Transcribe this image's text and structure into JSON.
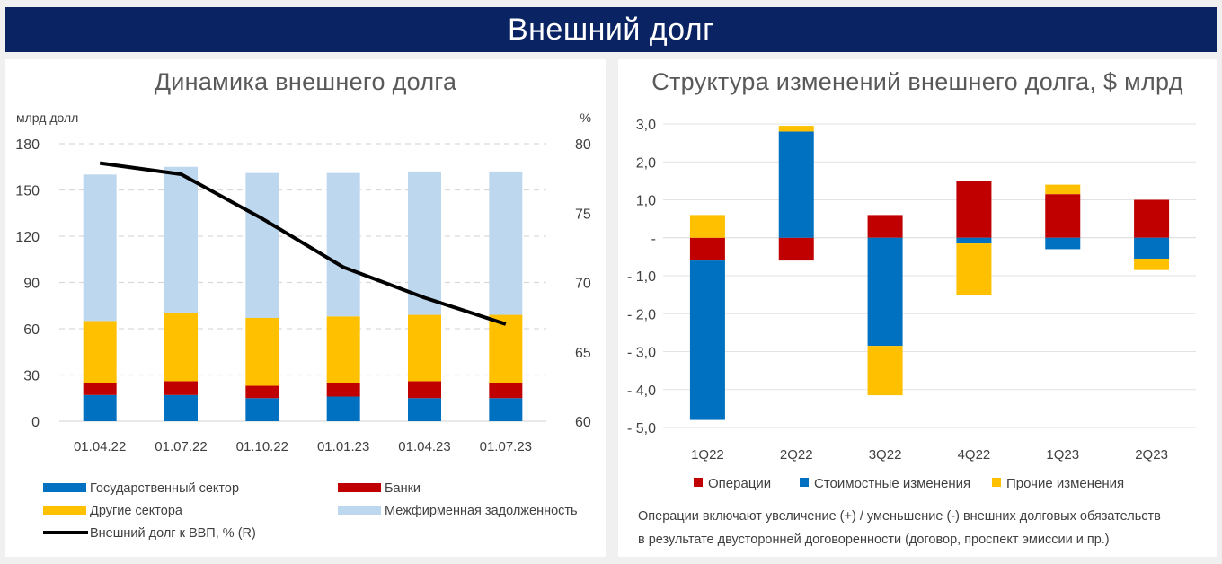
{
  "banner": {
    "title": "Внешний долг"
  },
  "left_chart": {
    "title": "Динамика внешнего долга",
    "ylabel_left": "млрд долл",
    "ylabel_right": "%"
  },
  "right_chart": {
    "title": "Структура изменений внешнего долга, $ млрд",
    "footnote_line1": "Операции включают увеличение (+) / уменьшение (-) внешних долговых обязательств",
    "footnote_line2": "в результате двусторонней договоренности (договор, проспект эмиссии и пр.)"
  },
  "colors": {
    "government": "#0070c0",
    "banks": "#c00000",
    "other_sectors": "#ffc000",
    "intercompany": "#bdd7ee",
    "line": "#000000",
    "operations": "#c00000",
    "valuation": "#0070c0",
    "other_changes": "#ffc000"
  },
  "chart_data": [
    {
      "type": "bar",
      "stacked": true,
      "title": "Динамика внешнего долга",
      "categories": [
        "01.04.22",
        "01.07.22",
        "01.10.22",
        "01.01.23",
        "01.04.23",
        "01.07.23"
      ],
      "ylabel": "млрд долл",
      "ylim": [
        0,
        180
      ],
      "yticks": [
        0,
        30,
        60,
        90,
        120,
        150,
        180
      ],
      "y2label": "%",
      "y2lim": [
        60,
        80
      ],
      "y2ticks": [
        60,
        65,
        70,
        75,
        80
      ],
      "grid": true,
      "legend_position": "bottom",
      "series": [
        {
          "name": "Государственный сектор",
          "color_key": "government",
          "values": [
            17,
            17,
            15,
            16,
            15,
            15
          ]
        },
        {
          "name": "Банки",
          "color_key": "banks",
          "values": [
            8,
            9,
            8,
            9,
            11,
            10
          ]
        },
        {
          "name": "Другие сектора",
          "color_key": "other_sectors",
          "values": [
            40,
            44,
            44,
            43,
            43,
            44
          ]
        },
        {
          "name": "Межфирменная задолженность",
          "color_key": "intercompany",
          "values": [
            95,
            95,
            94,
            93,
            93,
            93
          ]
        }
      ],
      "line_series": [
        {
          "name": "Внешний долг к ВВП, % (R)",
          "color_key": "line",
          "axis": "right",
          "values": [
            78.6,
            77.8,
            74.6,
            71.1,
            68.9,
            67.0
          ]
        }
      ],
      "legend_order": [
        "Государственный сектор",
        "Банки",
        "Другие сектора",
        "Межфирменная задолженность",
        "Внешний долг к ВВП, % (R)"
      ]
    },
    {
      "type": "bar",
      "stacked": true,
      "diverging": true,
      "title": "Структура изменений внешнего долга, $ млрд",
      "categories": [
        "1Q22",
        "2Q22",
        "3Q22",
        "4Q22",
        "1Q23",
        "2Q23"
      ],
      "ylim": [
        -5,
        3
      ],
      "yticks": [
        -5,
        -4,
        -3,
        -2,
        -1,
        0,
        1,
        2,
        3
      ],
      "ytick_labels": [
        "- 5,0",
        "- 4,0",
        "- 3,0",
        "- 2,0",
        "- 1,0",
        "-",
        "1,0",
        "2,0",
        "3,0"
      ],
      "grid": true,
      "legend_position": "bottom",
      "series": [
        {
          "name": "Операции",
          "color_key": "operations",
          "values": [
            -0.6,
            -0.6,
            0.6,
            1.5,
            1.15,
            1.0
          ]
        },
        {
          "name": "Стоимостные изменения",
          "color_key": "valuation",
          "values": [
            -4.2,
            2.8,
            -2.85,
            -0.15,
            -0.3,
            -0.55
          ]
        },
        {
          "name": "Прочие изменения",
          "color_key": "other_changes",
          "values": [
            0.6,
            0.15,
            -1.3,
            -1.35,
            0.25,
            -0.3
          ]
        }
      ]
    }
  ]
}
